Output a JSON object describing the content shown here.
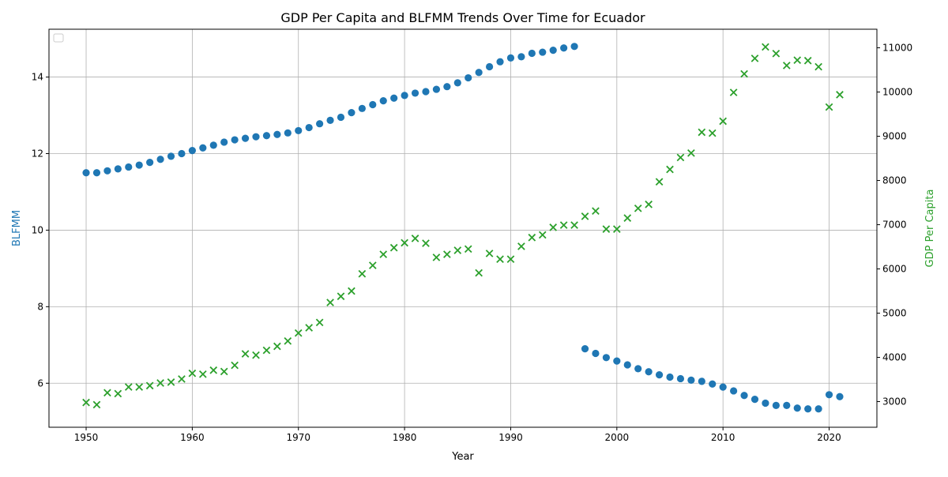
{
  "chart_data": {
    "type": "scatter",
    "title": "GDP Per Capita and BLFMM Trends Over Time for Ecuador",
    "xlabel": "Year",
    "ylabel_left": "BLFMM",
    "ylabel_right": "GDP Per Capita",
    "xlim": [
      1946.5,
      2024.5
    ],
    "ylim_left": [
      4.85,
      15.25
    ],
    "ylim_right": [
      2420,
      11420
    ],
    "x_ticks": [
      1950,
      1960,
      1970,
      1980,
      1990,
      2000,
      2010,
      2020
    ],
    "y_left_ticks": [
      6,
      8,
      10,
      12,
      14
    ],
    "y_right_ticks": [
      3000,
      4000,
      5000,
      6000,
      7000,
      8000,
      9000,
      10000,
      11000
    ],
    "grid": true,
    "legend": "top-left (empty)",
    "colors": {
      "blfmm": "#1f77b4",
      "gdp": "#2ca02c",
      "grid": "#b0b0b0",
      "axis": "#000000"
    },
    "series": [
      {
        "key": "blfmm",
        "axis": "left",
        "marker": "circle",
        "x": [
          1950,
          1951,
          1952,
          1953,
          1954,
          1955,
          1956,
          1957,
          1958,
          1959,
          1960,
          1961,
          1962,
          1963,
          1964,
          1965,
          1966,
          1967,
          1968,
          1969,
          1970,
          1971,
          1972,
          1973,
          1974,
          1975,
          1976,
          1977,
          1978,
          1979,
          1980,
          1981,
          1982,
          1983,
          1984,
          1985,
          1986,
          1987,
          1988,
          1989,
          1990,
          1991,
          1992,
          1993,
          1994,
          1995,
          1996,
          1997,
          1998,
          1999,
          2000,
          2001,
          2002,
          2003,
          2004,
          2005,
          2006,
          2007,
          2008,
          2009,
          2010,
          2011,
          2012,
          2013,
          2014,
          2015,
          2016,
          2017,
          2018,
          2019,
          2020,
          2021
        ],
        "y": [
          11.5,
          11.5,
          11.55,
          11.6,
          11.65,
          11.7,
          11.77,
          11.85,
          11.93,
          12.0,
          12.08,
          12.15,
          12.22,
          12.3,
          12.36,
          12.4,
          12.44,
          12.47,
          12.5,
          12.54,
          12.6,
          12.68,
          12.78,
          12.87,
          12.95,
          13.07,
          13.18,
          13.28,
          13.38,
          13.45,
          13.52,
          13.58,
          13.62,
          13.68,
          13.75,
          13.85,
          13.98,
          14.12,
          14.27,
          14.4,
          14.5,
          14.53,
          14.62,
          14.65,
          14.7,
          14.76,
          14.8,
          6.9,
          6.78,
          6.67,
          6.58,
          6.48,
          6.38,
          6.3,
          6.22,
          6.16,
          6.12,
          6.08,
          6.05,
          5.98,
          5.9,
          5.8,
          5.68,
          5.58,
          5.48,
          5.42,
          5.42,
          5.35,
          5.33,
          5.33,
          5.7,
          5.65
        ]
      },
      {
        "key": "gdp",
        "axis": "right",
        "marker": "x",
        "x": [
          1950,
          1951,
          1952,
          1953,
          1954,
          1955,
          1956,
          1957,
          1958,
          1959,
          1960,
          1961,
          1962,
          1963,
          1964,
          1965,
          1966,
          1967,
          1968,
          1969,
          1970,
          1971,
          1972,
          1973,
          1974,
          1975,
          1976,
          1977,
          1978,
          1979,
          1980,
          1981,
          1982,
          1983,
          1984,
          1985,
          1986,
          1987,
          1988,
          1989,
          1990,
          1991,
          1992,
          1993,
          1994,
          1995,
          1996,
          1997,
          1998,
          1999,
          2000,
          2001,
          2002,
          2003,
          2004,
          2005,
          2006,
          2007,
          2008,
          2009,
          2010,
          2011,
          2012,
          2013,
          2014,
          2015,
          2016,
          2017,
          2018,
          2019,
          2020,
          2021
        ],
        "y": [
          2980,
          2930,
          3200,
          3180,
          3330,
          3330,
          3360,
          3420,
          3440,
          3510,
          3640,
          3620,
          3710,
          3680,
          3820,
          4080,
          4050,
          4160,
          4250,
          4370,
          4550,
          4670,
          4790,
          5240,
          5380,
          5500,
          5890,
          6080,
          6330,
          6480,
          6590,
          6690,
          6580,
          6260,
          6330,
          6420,
          6450,
          5910,
          6350,
          6220,
          6220,
          6510,
          6710,
          6770,
          6940,
          6990,
          6990,
          7190,
          7310,
          6900,
          6900,
          7150,
          7370,
          7460,
          7970,
          8250,
          8520,
          8620,
          9090,
          9070,
          9340,
          9990,
          10410,
          10760,
          11020,
          10870,
          10600,
          10720,
          10710,
          10570,
          9660,
          9940
        ]
      }
    ]
  }
}
